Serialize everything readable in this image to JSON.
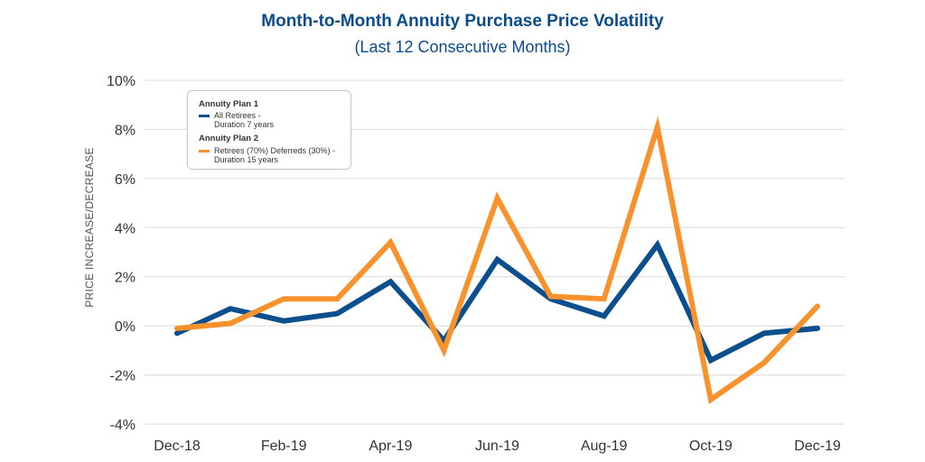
{
  "chart_data": {
    "type": "line",
    "title": "Month-to-Month Annuity Purchase Price Volatility",
    "subtitle": "(Last 12 Consecutive Months)",
    "ylabel": "PRICE INCREASE/DECREASE",
    "xlabel": "",
    "ylim": [
      -4,
      10
    ],
    "yticks": [
      -4,
      -2,
      0,
      2,
      4,
      6,
      8,
      10
    ],
    "ytick_labels": [
      "-4%",
      "-2%",
      "0%",
      "2%",
      "4%",
      "6%",
      "8%",
      "10%"
    ],
    "categories": [
      "Dec-18",
      "Jan-19",
      "Feb-19",
      "Mar-19",
      "Apr-19",
      "May-19",
      "Jun-19",
      "Jul-19",
      "Aug-19",
      "Sep-19",
      "Oct-19",
      "Nov-19",
      "Dec-19"
    ],
    "xtick_labels": [
      "Dec-18",
      "",
      "Feb-19",
      "",
      "Apr-19",
      "",
      "Jun-19",
      "",
      "Aug-19",
      "",
      "Oct-19",
      "",
      "Dec-19"
    ],
    "grid": true,
    "legend_position": "top-left",
    "series": [
      {
        "name": "All Retirees - Duration 7 years",
        "group": "Annuity Plan 1",
        "line1": "All Retirees -",
        "line2": "Duration 7 years",
        "color": "#0b4f8c",
        "values": [
          -0.3,
          0.7,
          0.2,
          0.5,
          1.8,
          -0.6,
          2.7,
          1.1,
          0.4,
          3.3,
          -1.4,
          -0.3,
          -0.1
        ]
      },
      {
        "name": "Retirees (70%) Deferreds (30%) - Duration 15 years",
        "group": "Annuity Plan 2",
        "line1": "Retirees (70%) Deferreds (30%) -",
        "line2": "Duration 15 years",
        "color": "#f7922c",
        "values": [
          -0.1,
          0.1,
          1.1,
          1.1,
          3.4,
          -1.0,
          5.2,
          1.2,
          1.1,
          8.1,
          -3.0,
          -1.5,
          0.8
        ]
      }
    ]
  }
}
